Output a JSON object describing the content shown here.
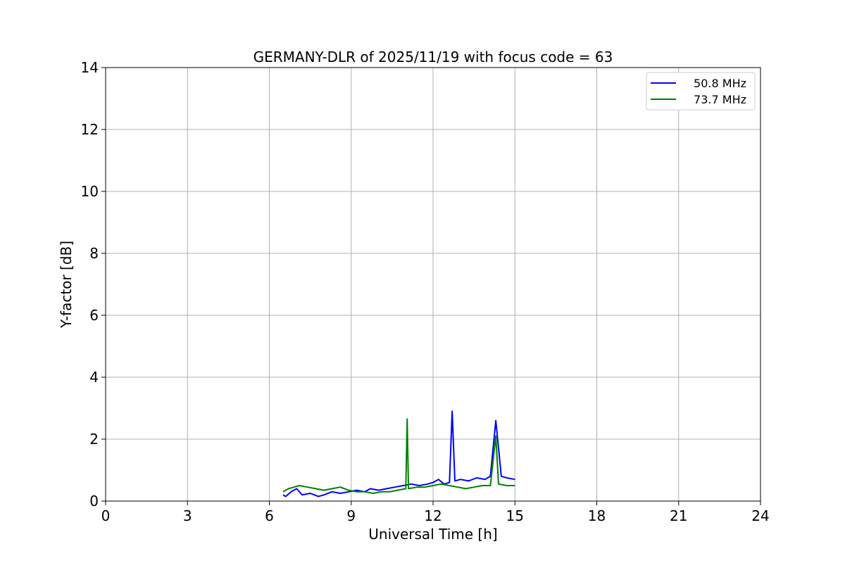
{
  "chart_data": {
    "type": "line",
    "title": "GERMANY-DLR of 2025/11/19 with focus code = 63",
    "xlabel": "Universal Time [h]",
    "ylabel": "Y-factor [dB]",
    "xlim": [
      0,
      24
    ],
    "ylim": [
      0,
      14
    ],
    "xticks": [
      0,
      3,
      6,
      9,
      12,
      15,
      18,
      21,
      24
    ],
    "yticks": [
      0,
      2,
      4,
      6,
      8,
      10,
      12,
      14
    ],
    "grid": true,
    "legend_position": "top-right",
    "series": [
      {
        "name": "50.8 MHz",
        "color": "#0000ff",
        "x": [
          6.5,
          6.6,
          6.8,
          7.0,
          7.2,
          7.5,
          7.8,
          8.0,
          8.3,
          8.6,
          8.9,
          9.2,
          9.5,
          9.7,
          10.0,
          10.3,
          10.6,
          10.9,
          11.2,
          11.5,
          11.8,
          12.0,
          12.2,
          12.4,
          12.6,
          12.7,
          12.8,
          13.0,
          13.3,
          13.6,
          13.9,
          14.1,
          14.3,
          14.5,
          14.7,
          15.0
        ],
        "y": [
          0.2,
          0.15,
          0.3,
          0.4,
          0.2,
          0.25,
          0.15,
          0.2,
          0.3,
          0.25,
          0.3,
          0.35,
          0.3,
          0.4,
          0.35,
          0.4,
          0.45,
          0.5,
          0.55,
          0.5,
          0.55,
          0.6,
          0.7,
          0.55,
          0.6,
          2.9,
          0.65,
          0.7,
          0.65,
          0.75,
          0.7,
          0.8,
          2.6,
          0.8,
          0.75,
          0.7
        ]
      },
      {
        "name": "73.7 MHz",
        "color": "#008000",
        "x": [
          6.5,
          6.7,
          6.9,
          7.1,
          7.4,
          7.7,
          8.0,
          8.3,
          8.6,
          8.9,
          9.2,
          9.5,
          9.8,
          10.1,
          10.4,
          10.7,
          11.0,
          11.05,
          11.1,
          11.4,
          11.7,
          12.0,
          12.3,
          12.6,
          12.9,
          13.2,
          13.5,
          13.8,
          14.1,
          14.3,
          14.4,
          14.7,
          15.0
        ],
        "y": [
          0.3,
          0.4,
          0.45,
          0.5,
          0.45,
          0.4,
          0.35,
          0.4,
          0.45,
          0.35,
          0.3,
          0.3,
          0.25,
          0.3,
          0.3,
          0.35,
          0.4,
          2.65,
          0.4,
          0.45,
          0.45,
          0.5,
          0.55,
          0.5,
          0.45,
          0.4,
          0.45,
          0.5,
          0.5,
          2.1,
          0.55,
          0.5,
          0.5
        ]
      }
    ]
  }
}
